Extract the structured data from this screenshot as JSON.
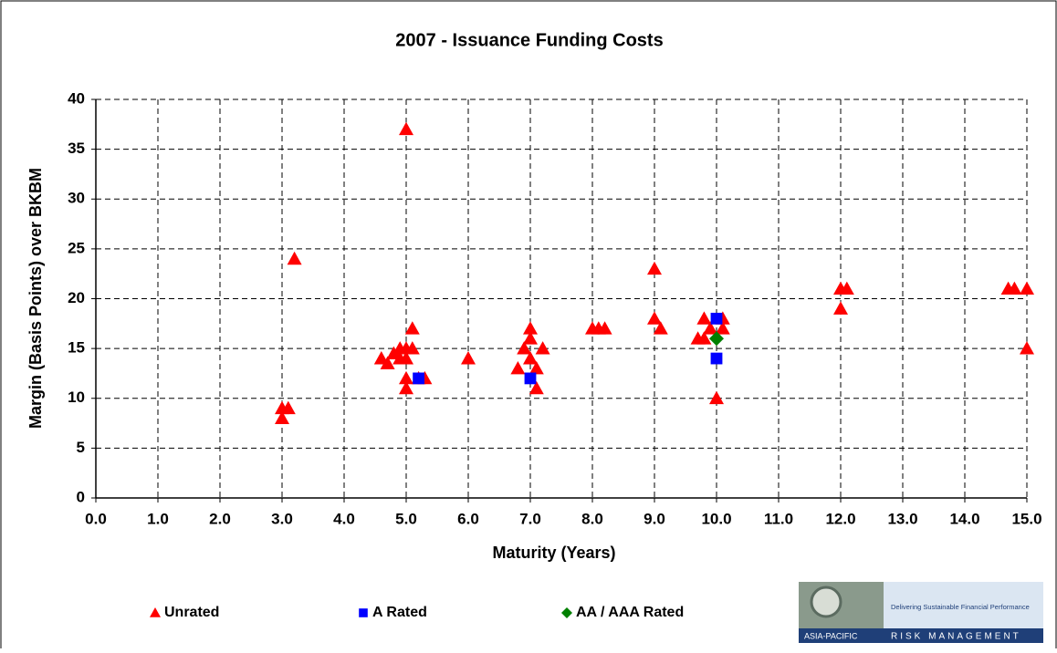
{
  "chart_data": {
    "type": "scatter",
    "title": "2007 - Issuance Funding Costs",
    "x_label": "Maturity (Years)",
    "y_label": "Margin (Basis Points) over BKBM",
    "xlim": [
      0,
      15
    ],
    "ylim": [
      0,
      40
    ],
    "xticks": [
      {
        "value": 0,
        "label": "0.0"
      },
      {
        "value": 1,
        "label": "1.0"
      },
      {
        "value": 2,
        "label": "2.0"
      },
      {
        "value": 3,
        "label": "3.0"
      },
      {
        "value": 4,
        "label": "4.0"
      },
      {
        "value": 5,
        "label": "5.0"
      },
      {
        "value": 6,
        "label": "6.0"
      },
      {
        "value": 7,
        "label": "7.0"
      },
      {
        "value": 8,
        "label": "8.0"
      },
      {
        "value": 9,
        "label": "9.0"
      },
      {
        "value": 10,
        "label": "10.0"
      },
      {
        "value": 11,
        "label": "11.0"
      },
      {
        "value": 12,
        "label": "12.0"
      },
      {
        "value": 13,
        "label": "13.0"
      },
      {
        "value": 14,
        "label": "14.0"
      },
      {
        "value": 15,
        "label": "15.0"
      }
    ],
    "yticks": [
      0,
      5,
      10,
      15,
      20,
      25,
      30,
      35,
      40
    ],
    "grid": true,
    "legend": "bottom",
    "series": [
      {
        "name": "Unrated",
        "color": "#ff0000",
        "marker": "triangle",
        "x": [
          3.0,
          3.0,
          3.1,
          3.2,
          4.6,
          4.7,
          4.8,
          4.9,
          4.9,
          5.0,
          5.0,
          5.0,
          5.0,
          5.0,
          5.1,
          5.1,
          5.3,
          5.2,
          6.0,
          6.8,
          6.9,
          7.0,
          7.0,
          7.0,
          7.1,
          7.1,
          7.2,
          8.0,
          8.1,
          8.2,
          9.0,
          9.0,
          9.1,
          9.7,
          9.8,
          9.8,
          9.9,
          10.0,
          10.1,
          10.1,
          12.0,
          12.0,
          12.1,
          14.7,
          14.8,
          15.0,
          15.0
        ],
        "values": [
          8,
          9,
          9,
          24,
          14,
          13.5,
          14.5,
          15,
          14,
          14,
          15,
          12,
          11,
          37,
          15,
          17,
          12,
          12,
          14,
          13,
          15,
          17,
          16,
          14,
          13,
          11,
          15,
          17,
          17,
          17,
          23,
          18,
          17,
          16,
          16,
          18,
          17,
          10,
          18,
          17,
          21,
          19,
          21,
          21,
          21,
          21,
          15
        ]
      },
      {
        "name": "A Rated",
        "color": "#0000ff",
        "marker": "square",
        "x": [
          5.2,
          7.0,
          10.0,
          10.0
        ],
        "values": [
          12,
          12,
          18,
          14
        ]
      },
      {
        "name": "AA / AAA Rated",
        "color": "#008000",
        "marker": "diamond",
        "x": [
          10.0
        ],
        "values": [
          16
        ]
      }
    ]
  },
  "logo": {
    "tagline": "Delivering Sustainable Financial Performance",
    "region": "ASIA-PACIFIC",
    "name": "RISK MANAGEMENT"
  }
}
